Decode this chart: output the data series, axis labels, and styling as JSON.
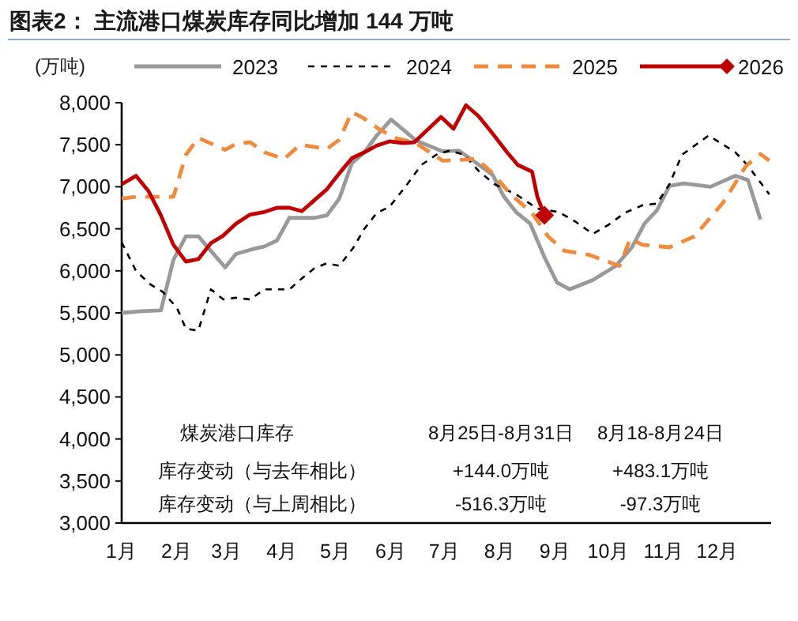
{
  "chart_data": {
    "type": "line",
    "title": "图表2：  主流港口煤炭库存同比增加 144 万吨",
    "ylabel": "(万吨)",
    "xlim": [
      "--01-01",
      "--12-31"
    ],
    "xticks": [
      {
        "value": "--01-01",
        "label": "1月"
      },
      {
        "value": "--02-01",
        "label": "2月"
      },
      {
        "value": "--03-01",
        "label": "3月"
      },
      {
        "value": "--04-01",
        "label": "4月"
      },
      {
        "value": "--05-01",
        "label": "5月"
      },
      {
        "value": "--06-01",
        "label": "6月"
      },
      {
        "value": "--07-01",
        "label": "7月"
      },
      {
        "value": "--08-01",
        "label": "8月"
      },
      {
        "value": "--09-01",
        "label": "9月"
      },
      {
        "value": "--10-01",
        "label": "10月"
      },
      {
        "value": "--11-01",
        "label": "11月"
      },
      {
        "value": "--12-01",
        "label": "12月"
      }
    ],
    "ylim": [
      3000,
      8000
    ],
    "yticks": [
      {
        "value": 3000,
        "label": "3,000"
      },
      {
        "value": 3500,
        "label": "3,500"
      },
      {
        "value": 4000,
        "label": "4,000"
      },
      {
        "value": 4500,
        "label": "4,500"
      },
      {
        "value": 5000,
        "label": "5,000"
      },
      {
        "value": 5500,
        "label": "5,500"
      },
      {
        "value": 6000,
        "label": "6,000"
      },
      {
        "value": 6500,
        "label": "6,500"
      },
      {
        "value": 7000,
        "label": "7,000"
      },
      {
        "value": 7500,
        "label": "7,500"
      },
      {
        "value": 8000,
        "label": "8,000"
      }
    ],
    "legend": "top",
    "grid": false,
    "series": [
      {
        "name": "2023",
        "color": "#999999",
        "line_style": "solid",
        "x": [
          "--01-01",
          "--01-12",
          "--01-23",
          "--01-30",
          "--02-06",
          "--02-13",
          "--02-28",
          "--03-06",
          "--03-14",
          "--03-22",
          "--03-29",
          "--04-05",
          "--04-19",
          "--04-26",
          "--05-03",
          "--05-10",
          "--05-17",
          "--05-24",
          "--06-01",
          "--06-15",
          "--06-30",
          "--07-09",
          "--07-19",
          "--07-28",
          "--08-03",
          "--08-10",
          "--08-18",
          "--08-26",
          "--09-02",
          "--09-09",
          "--09-22",
          "--10-05",
          "--10-14",
          "--10-21",
          "--10-28",
          "--11-04",
          "--11-12",
          "--11-27",
          "--12-11",
          "--12-18",
          "--12-25"
        ],
        "values": [
          5500,
          5520,
          5530,
          6130,
          6410,
          6410,
          6040,
          6200,
          6250,
          6290,
          6360,
          6630,
          6630,
          6660,
          6860,
          7280,
          7410,
          7610,
          7800,
          7550,
          7420,
          7430,
          7280,
          7140,
          6890,
          6700,
          6560,
          6160,
          5860,
          5780,
          5890,
          6060,
          6280,
          6560,
          6720,
          7010,
          7040,
          7000,
          7130,
          7080,
          6610
        ]
      },
      {
        "name": "2024",
        "color": "#000000",
        "line_style": "dashed",
        "x": [
          "--01-01",
          "--01-09",
          "--01-17",
          "--01-24",
          "--02-01",
          "--02-06",
          "--02-13",
          "--02-20",
          "--02-27",
          "--03-06",
          "--03-14",
          "--03-22",
          "--04-05",
          "--04-12",
          "--04-19",
          "--04-26",
          "--05-03",
          "--05-11",
          "--05-17",
          "--05-24",
          "--05-31",
          "--06-09",
          "--06-18",
          "--06-27",
          "--07-04",
          "--07-12",
          "--07-20",
          "--07-29",
          "--08-10",
          "--08-22",
          "--09-03",
          "--09-12",
          "--09-22",
          "--10-01",
          "--10-10",
          "--10-20",
          "--10-28",
          "--11-04",
          "--11-11",
          "--11-26",
          "--12-11",
          "--12-18",
          "--12-30"
        ],
        "values": [
          6340,
          6000,
          5840,
          5750,
          5560,
          5310,
          5290,
          5780,
          5660,
          5680,
          5660,
          5780,
          5780,
          5910,
          6030,
          6090,
          6060,
          6280,
          6500,
          6690,
          6760,
          7000,
          7260,
          7390,
          7430,
          7380,
          7190,
          7030,
          6910,
          6740,
          6700,
          6590,
          6440,
          6550,
          6690,
          6780,
          6800,
          7030,
          7380,
          7610,
          7410,
          7250,
          6910
        ]
      },
      {
        "name": "2025",
        "color": "#f08a3c",
        "line_style": "dashed",
        "x": [
          "--01-01",
          "--01-09",
          "--01-23",
          "--01-30",
          "--02-06",
          "--02-13",
          "--02-28",
          "--03-06",
          "--03-14",
          "--03-22",
          "--04-02",
          "--04-11",
          "--04-26",
          "--05-03",
          "--05-10",
          "--05-17",
          "--05-25",
          "--06-03",
          "--06-14",
          "--06-30",
          "--07-19",
          "--07-28",
          "--08-07",
          "--08-19",
          "--08-28",
          "--09-06",
          "--09-20",
          "--10-07",
          "--10-13",
          "--10-20",
          "--11-04",
          "--11-18",
          "--12-04",
          "--12-17",
          "--12-25",
          "--12-30"
        ],
        "values": [
          6860,
          6880,
          6880,
          6880,
          7380,
          7580,
          7440,
          7510,
          7530,
          7410,
          7330,
          7500,
          7450,
          7560,
          7890,
          7810,
          7690,
          7580,
          7530,
          7310,
          7330,
          7160,
          6910,
          6690,
          6410,
          6240,
          6190,
          6060,
          6380,
          6310,
          6280,
          6410,
          6810,
          7250,
          7390,
          7310
        ]
      },
      {
        "name": "2026",
        "color": "#c00000",
        "line_style": "solid",
        "x": [
          "--01-01",
          "--01-09",
          "--01-16",
          "--01-23",
          "--01-30",
          "--02-06",
          "--02-13",
          "--02-20",
          "--02-27",
          "--03-06",
          "--03-14",
          "--03-22",
          "--03-29",
          "--04-05",
          "--04-12",
          "--04-19",
          "--04-26",
          "--05-03",
          "--05-10",
          "--05-17",
          "--05-24",
          "--05-31",
          "--06-08",
          "--06-14",
          "--06-29",
          "--07-06",
          "--07-13",
          "--07-20",
          "--07-28",
          "--08-05",
          "--08-11",
          "--08-19",
          "--08-22",
          "--08-26"
        ],
        "values": [
          7030,
          7130,
          6950,
          6660,
          6310,
          6110,
          6140,
          6330,
          6420,
          6560,
          6670,
          6700,
          6750,
          6750,
          6710,
          6840,
          6970,
          7160,
          7340,
          7410,
          7490,
          7540,
          7520,
          7530,
          7830,
          7690,
          7970,
          7840,
          7630,
          7410,
          7260,
          7180,
          6880,
          6660
        ]
      },
      {
        "type": "scatter",
        "color": "#c00000",
        "marker": "diamond",
        "x": [
          "--08-26"
        ],
        "values": [
          6660
        ]
      }
    ],
    "annotations": [
      "煤炭港口库存",
      "8月25日-8月31日",
      "8月18-8月24日",
      "库存变动（与去年相比）",
      "+144.0万吨",
      "+483.1万吨",
      "库存变动（与上周相比）",
      "-516.3万吨",
      "-97.3万吨"
    ]
  }
}
